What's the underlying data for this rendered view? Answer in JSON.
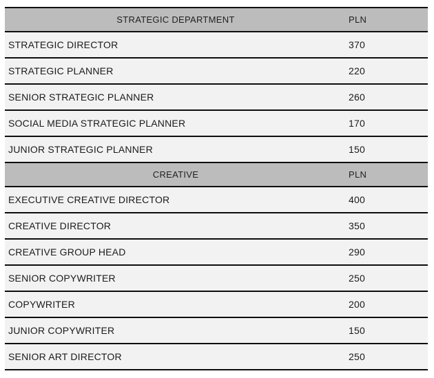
{
  "table": {
    "sections": [
      {
        "title": "STRATEGIC DEPARTMENT",
        "unit": "PLN",
        "rows": [
          {
            "role": "STRATEGIC DIRECTOR",
            "rate": "370"
          },
          {
            "role": "STRATEGIC PLANNER",
            "rate": "220"
          },
          {
            "role": "SENIOR STRATEGIC PLANNER",
            "rate": "260"
          },
          {
            "role": "SOCIAL MEDIA STRATEGIC PLANNER",
            "rate": "170"
          },
          {
            "role": "JUNIOR STRATEGIC PLANNER",
            "rate": "150"
          }
        ]
      },
      {
        "title": "CREATIVE",
        "unit": "PLN",
        "rows": [
          {
            "role": "EXECUTIVE CREATIVE DIRECTOR",
            "rate": "400"
          },
          {
            "role": "CREATIVE DIRECTOR",
            "rate": "350"
          },
          {
            "role": "CREATIVE GROUP HEAD",
            "rate": "290"
          },
          {
            "role": "SENIOR COPYWRITER",
            "rate": "250"
          },
          {
            "role": "COPYWRITER",
            "rate": "200"
          },
          {
            "role": "JUNIOR COPYWRITER",
            "rate": "150"
          },
          {
            "role": "SENIOR ART DIRECTOR",
            "rate": "250"
          }
        ]
      }
    ]
  },
  "colors": {
    "section_header_bg": "#bcbcbc",
    "row_bg": "#f2f2f2",
    "border": "#0d0d0d",
    "text": "#1a1a1a"
  }
}
